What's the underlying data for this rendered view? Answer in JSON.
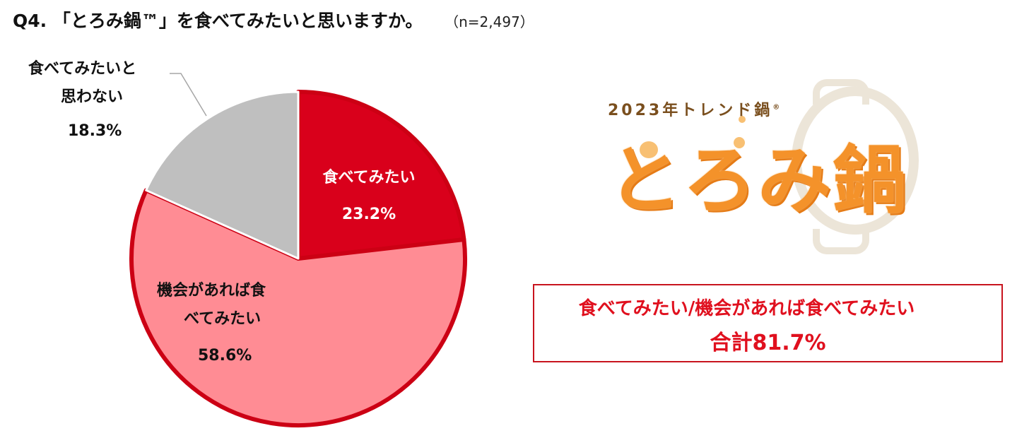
{
  "title": {
    "question": "Q4.",
    "text": "「とろみ鍋™」を食べてみたいと思いますか。",
    "sample": "（n=2,497）"
  },
  "chart_data": {
    "type": "pie",
    "slices": [
      {
        "label_line1": "食べてみたい",
        "label_line2": "",
        "value": 23.2,
        "value_label": "23.2%",
        "color": "#d9001b"
      },
      {
        "label_line1": "機会があれば食",
        "label_line2": "べてみたい",
        "value": 58.6,
        "value_label": "58.6%",
        "color": "#ff8c94"
      },
      {
        "label_line1": "食べてみたいと",
        "label_line2": "思わない",
        "value": 18.3,
        "value_label": "18.3%",
        "color": "#bfbfbf"
      }
    ],
    "outline_color": "#cc0014"
  },
  "logo": {
    "subtitle": "2023年トレンド鍋",
    "mark": "®",
    "name": "とろみ鍋"
  },
  "summary": {
    "line1": "食べてみたい/機会があれば食べてみたい",
    "line2": "合計81.7%"
  }
}
